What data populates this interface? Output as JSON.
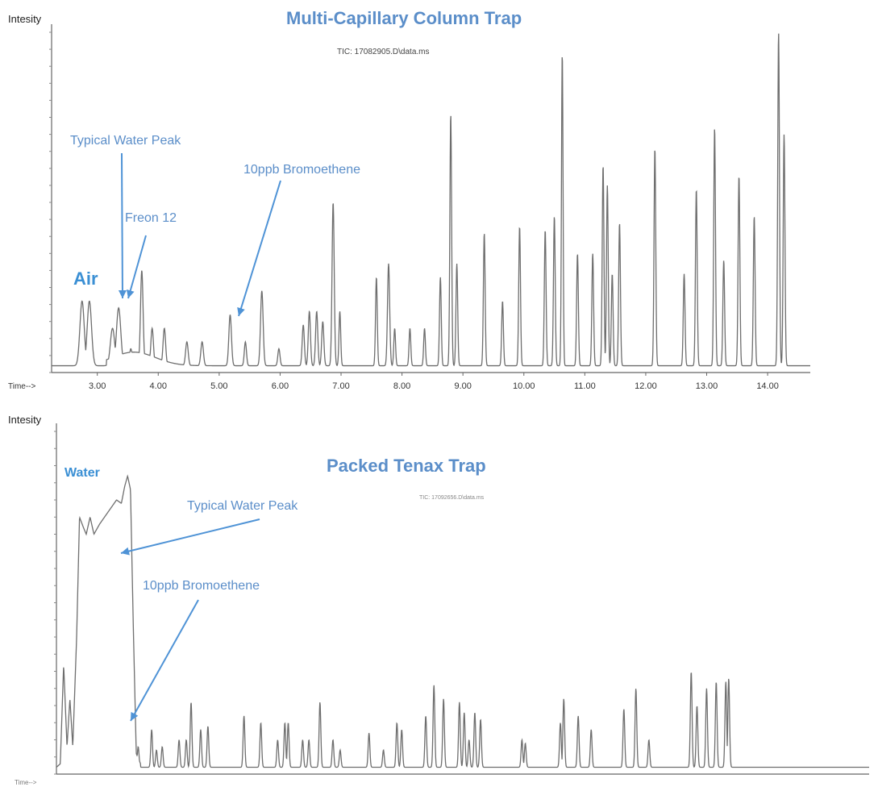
{
  "chart_data": [
    {
      "type": "line",
      "title": "Multi-Capillary Column Trap",
      "subtitle": "TIC: 17082905.D\\data.ms",
      "xlabel": "Time-->",
      "ylabel": "Intesity",
      "xlim": [
        2.25,
        14.7
      ],
      "ylim": [
        0,
        100
      ],
      "x_ticks": [
        3.0,
        4.0,
        5.0,
        6.0,
        7.0,
        8.0,
        9.0,
        10.0,
        11.0,
        12.0,
        13.0,
        14.0
      ],
      "x_tick_labels": [
        "3.00",
        "4.00",
        "5.00",
        "6.00",
        "7.00",
        "8.00",
        "9.00",
        "10.00",
        "11.00",
        "12.00",
        "13.00",
        "14.00"
      ],
      "grid": false,
      "baseline": 2,
      "peaks": [
        {
          "x": 2.75,
          "y": 21,
          "w": 0.05
        },
        {
          "x": 2.87,
          "y": 21,
          "w": 0.05
        },
        {
          "x": 3.25,
          "y": 13,
          "w": 0.05
        },
        {
          "x": 3.35,
          "y": 19,
          "w": 0.05
        },
        {
          "x": 3.55,
          "y": 7,
          "w": 0.03
        },
        {
          "x": 3.73,
          "y": 30,
          "w": 0.03
        },
        {
          "x": 3.9,
          "y": 13,
          "w": 0.03
        },
        {
          "x": 4.1,
          "y": 13,
          "w": 0.03
        },
        {
          "x": 4.47,
          "y": 9,
          "w": 0.03
        },
        {
          "x": 4.72,
          "y": 9,
          "w": 0.03
        },
        {
          "x": 5.18,
          "y": 17,
          "w": 0.03
        },
        {
          "x": 5.43,
          "y": 9,
          "w": 0.025
        },
        {
          "x": 5.7,
          "y": 24,
          "w": 0.03
        },
        {
          "x": 5.98,
          "y": 7,
          "w": 0.025
        },
        {
          "x": 6.38,
          "y": 14,
          "w": 0.025
        },
        {
          "x": 6.48,
          "y": 18,
          "w": 0.025
        },
        {
          "x": 6.6,
          "y": 18,
          "w": 0.025
        },
        {
          "x": 6.7,
          "y": 15,
          "w": 0.025
        },
        {
          "x": 6.87,
          "y": 50,
          "w": 0.025
        },
        {
          "x": 6.98,
          "y": 18,
          "w": 0.02
        },
        {
          "x": 7.58,
          "y": 28,
          "w": 0.02
        },
        {
          "x": 7.78,
          "y": 32,
          "w": 0.025
        },
        {
          "x": 7.88,
          "y": 13,
          "w": 0.02
        },
        {
          "x": 8.13,
          "y": 13,
          "w": 0.02
        },
        {
          "x": 8.37,
          "y": 13,
          "w": 0.02
        },
        {
          "x": 8.63,
          "y": 28,
          "w": 0.02
        },
        {
          "x": 8.8,
          "y": 76,
          "w": 0.02
        },
        {
          "x": 8.9,
          "y": 32,
          "w": 0.02
        },
        {
          "x": 9.35,
          "y": 41,
          "w": 0.02
        },
        {
          "x": 9.65,
          "y": 21,
          "w": 0.02
        },
        {
          "x": 9.93,
          "y": 43,
          "w": 0.02
        },
        {
          "x": 10.35,
          "y": 42,
          "w": 0.02
        },
        {
          "x": 10.5,
          "y": 46,
          "w": 0.02
        },
        {
          "x": 10.63,
          "y": 94,
          "w": 0.018
        },
        {
          "x": 10.88,
          "y": 35,
          "w": 0.02
        },
        {
          "x": 11.13,
          "y": 35,
          "w": 0.02
        },
        {
          "x": 11.3,
          "y": 61,
          "w": 0.02
        },
        {
          "x": 11.37,
          "y": 55,
          "w": 0.02
        },
        {
          "x": 11.45,
          "y": 29,
          "w": 0.02
        },
        {
          "x": 11.57,
          "y": 44,
          "w": 0.02
        },
        {
          "x": 12.15,
          "y": 66,
          "w": 0.02
        },
        {
          "x": 12.63,
          "y": 29,
          "w": 0.02
        },
        {
          "x": 12.83,
          "y": 54,
          "w": 0.02
        },
        {
          "x": 13.13,
          "y": 72,
          "w": 0.02
        },
        {
          "x": 13.28,
          "y": 33,
          "w": 0.02
        },
        {
          "x": 13.53,
          "y": 58,
          "w": 0.02
        },
        {
          "x": 13.78,
          "y": 46,
          "w": 0.02
        },
        {
          "x": 14.18,
          "y": 100,
          "w": 0.02
        },
        {
          "x": 14.27,
          "y": 70,
          "w": 0.02
        }
      ],
      "annotations": [
        {
          "text": "Air",
          "x": 2.55,
          "y": 24
        },
        {
          "text": "Typical Water Peak",
          "x": 3.25,
          "y": 22
        },
        {
          "text": "Freon 12",
          "x": 3.3,
          "y": 22
        },
        {
          "text": "10ppb Bromoethene",
          "x": 5.18,
          "y": 17
        }
      ]
    },
    {
      "type": "line",
      "title": "Packed Tenax Trap",
      "subtitle": "TIC: 17092656.D\\data.ms",
      "xlabel": "Time-->",
      "ylabel": "Intesity",
      "xlim": [
        2.3,
        19.2
      ],
      "ylim": [
        0,
        100
      ],
      "grid": false,
      "baseline": 2,
      "water_block": [
        {
          "x": 2.3,
          "y": 2
        },
        {
          "x": 2.38,
          "y": 3
        },
        {
          "x": 2.45,
          "y": 32
        },
        {
          "x": 2.52,
          "y": 8
        },
        {
          "x": 2.58,
          "y": 22
        },
        {
          "x": 2.64,
          "y": 8
        },
        {
          "x": 2.72,
          "y": 40
        },
        {
          "x": 2.78,
          "y": 75
        },
        {
          "x": 2.86,
          "y": 72
        },
        {
          "x": 2.92,
          "y": 70
        },
        {
          "x": 3.0,
          "y": 75
        },
        {
          "x": 3.08,
          "y": 70
        },
        {
          "x": 3.2,
          "y": 73
        },
        {
          "x": 3.4,
          "y": 77
        },
        {
          "x": 3.55,
          "y": 80
        },
        {
          "x": 3.65,
          "y": 79
        },
        {
          "x": 3.72,
          "y": 84
        },
        {
          "x": 3.78,
          "y": 87
        },
        {
          "x": 3.84,
          "y": 83
        },
        {
          "x": 3.9,
          "y": 42
        },
        {
          "x": 3.96,
          "y": 6
        },
        {
          "x": 4.05,
          "y": 3
        }
      ],
      "peaks": [
        {
          "x": 4.0,
          "y": 8,
          "w": 0.025
        },
        {
          "x": 4.28,
          "y": 13,
          "w": 0.025
        },
        {
          "x": 4.38,
          "y": 7,
          "w": 0.025
        },
        {
          "x": 4.5,
          "y": 8,
          "w": 0.025
        },
        {
          "x": 4.85,
          "y": 10,
          "w": 0.025
        },
        {
          "x": 5.0,
          "y": 10,
          "w": 0.025
        },
        {
          "x": 5.1,
          "y": 21,
          "w": 0.025
        },
        {
          "x": 5.3,
          "y": 13,
          "w": 0.025
        },
        {
          "x": 5.45,
          "y": 14,
          "w": 0.025
        },
        {
          "x": 6.2,
          "y": 17,
          "w": 0.025
        },
        {
          "x": 6.55,
          "y": 15,
          "w": 0.025
        },
        {
          "x": 6.9,
          "y": 10,
          "w": 0.025
        },
        {
          "x": 7.05,
          "y": 15,
          "w": 0.025
        },
        {
          "x": 7.12,
          "y": 15,
          "w": 0.025
        },
        {
          "x": 7.42,
          "y": 10,
          "w": 0.025
        },
        {
          "x": 7.55,
          "y": 10,
          "w": 0.025
        },
        {
          "x": 7.78,
          "y": 21,
          "w": 0.025
        },
        {
          "x": 8.05,
          "y": 10,
          "w": 0.025
        },
        {
          "x": 8.2,
          "y": 7,
          "w": 0.025
        },
        {
          "x": 8.8,
          "y": 12,
          "w": 0.025
        },
        {
          "x": 9.1,
          "y": 7,
          "w": 0.025
        },
        {
          "x": 9.38,
          "y": 15,
          "w": 0.025
        },
        {
          "x": 9.48,
          "y": 13,
          "w": 0.025
        },
        {
          "x": 9.98,
          "y": 17,
          "w": 0.025
        },
        {
          "x": 10.15,
          "y": 26,
          "w": 0.025
        },
        {
          "x": 10.35,
          "y": 22,
          "w": 0.025
        },
        {
          "x": 10.68,
          "y": 21,
          "w": 0.025
        },
        {
          "x": 10.78,
          "y": 18,
          "w": 0.025
        },
        {
          "x": 10.88,
          "y": 10,
          "w": 0.025
        },
        {
          "x": 11.0,
          "y": 18,
          "w": 0.025
        },
        {
          "x": 11.12,
          "y": 16,
          "w": 0.025
        },
        {
          "x": 11.98,
          "y": 10,
          "w": 0.025
        },
        {
          "x": 12.05,
          "y": 9,
          "w": 0.025
        },
        {
          "x": 12.78,
          "y": 15,
          "w": 0.025
        },
        {
          "x": 12.85,
          "y": 22,
          "w": 0.025
        },
        {
          "x": 13.15,
          "y": 17,
          "w": 0.025
        },
        {
          "x": 13.42,
          "y": 13,
          "w": 0.025
        },
        {
          "x": 14.1,
          "y": 19,
          "w": 0.025
        },
        {
          "x": 14.35,
          "y": 25,
          "w": 0.025
        },
        {
          "x": 14.62,
          "y": 10,
          "w": 0.025
        },
        {
          "x": 15.5,
          "y": 30,
          "w": 0.025
        },
        {
          "x": 15.62,
          "y": 20,
          "w": 0.025
        },
        {
          "x": 15.82,
          "y": 25,
          "w": 0.025
        },
        {
          "x": 16.02,
          "y": 27,
          "w": 0.025
        },
        {
          "x": 16.22,
          "y": 27,
          "w": 0.025
        },
        {
          "x": 16.28,
          "y": 28,
          "w": 0.025
        }
      ],
      "annotations": [
        {
          "text": "Water",
          "x": 2.85,
          "y": 85
        },
        {
          "text": "Typical Water Peak",
          "x": 3.9,
          "y": 56
        },
        {
          "text": "10ppb Bromoethene",
          "x": 4.0,
          "y": 8
        }
      ]
    }
  ]
}
